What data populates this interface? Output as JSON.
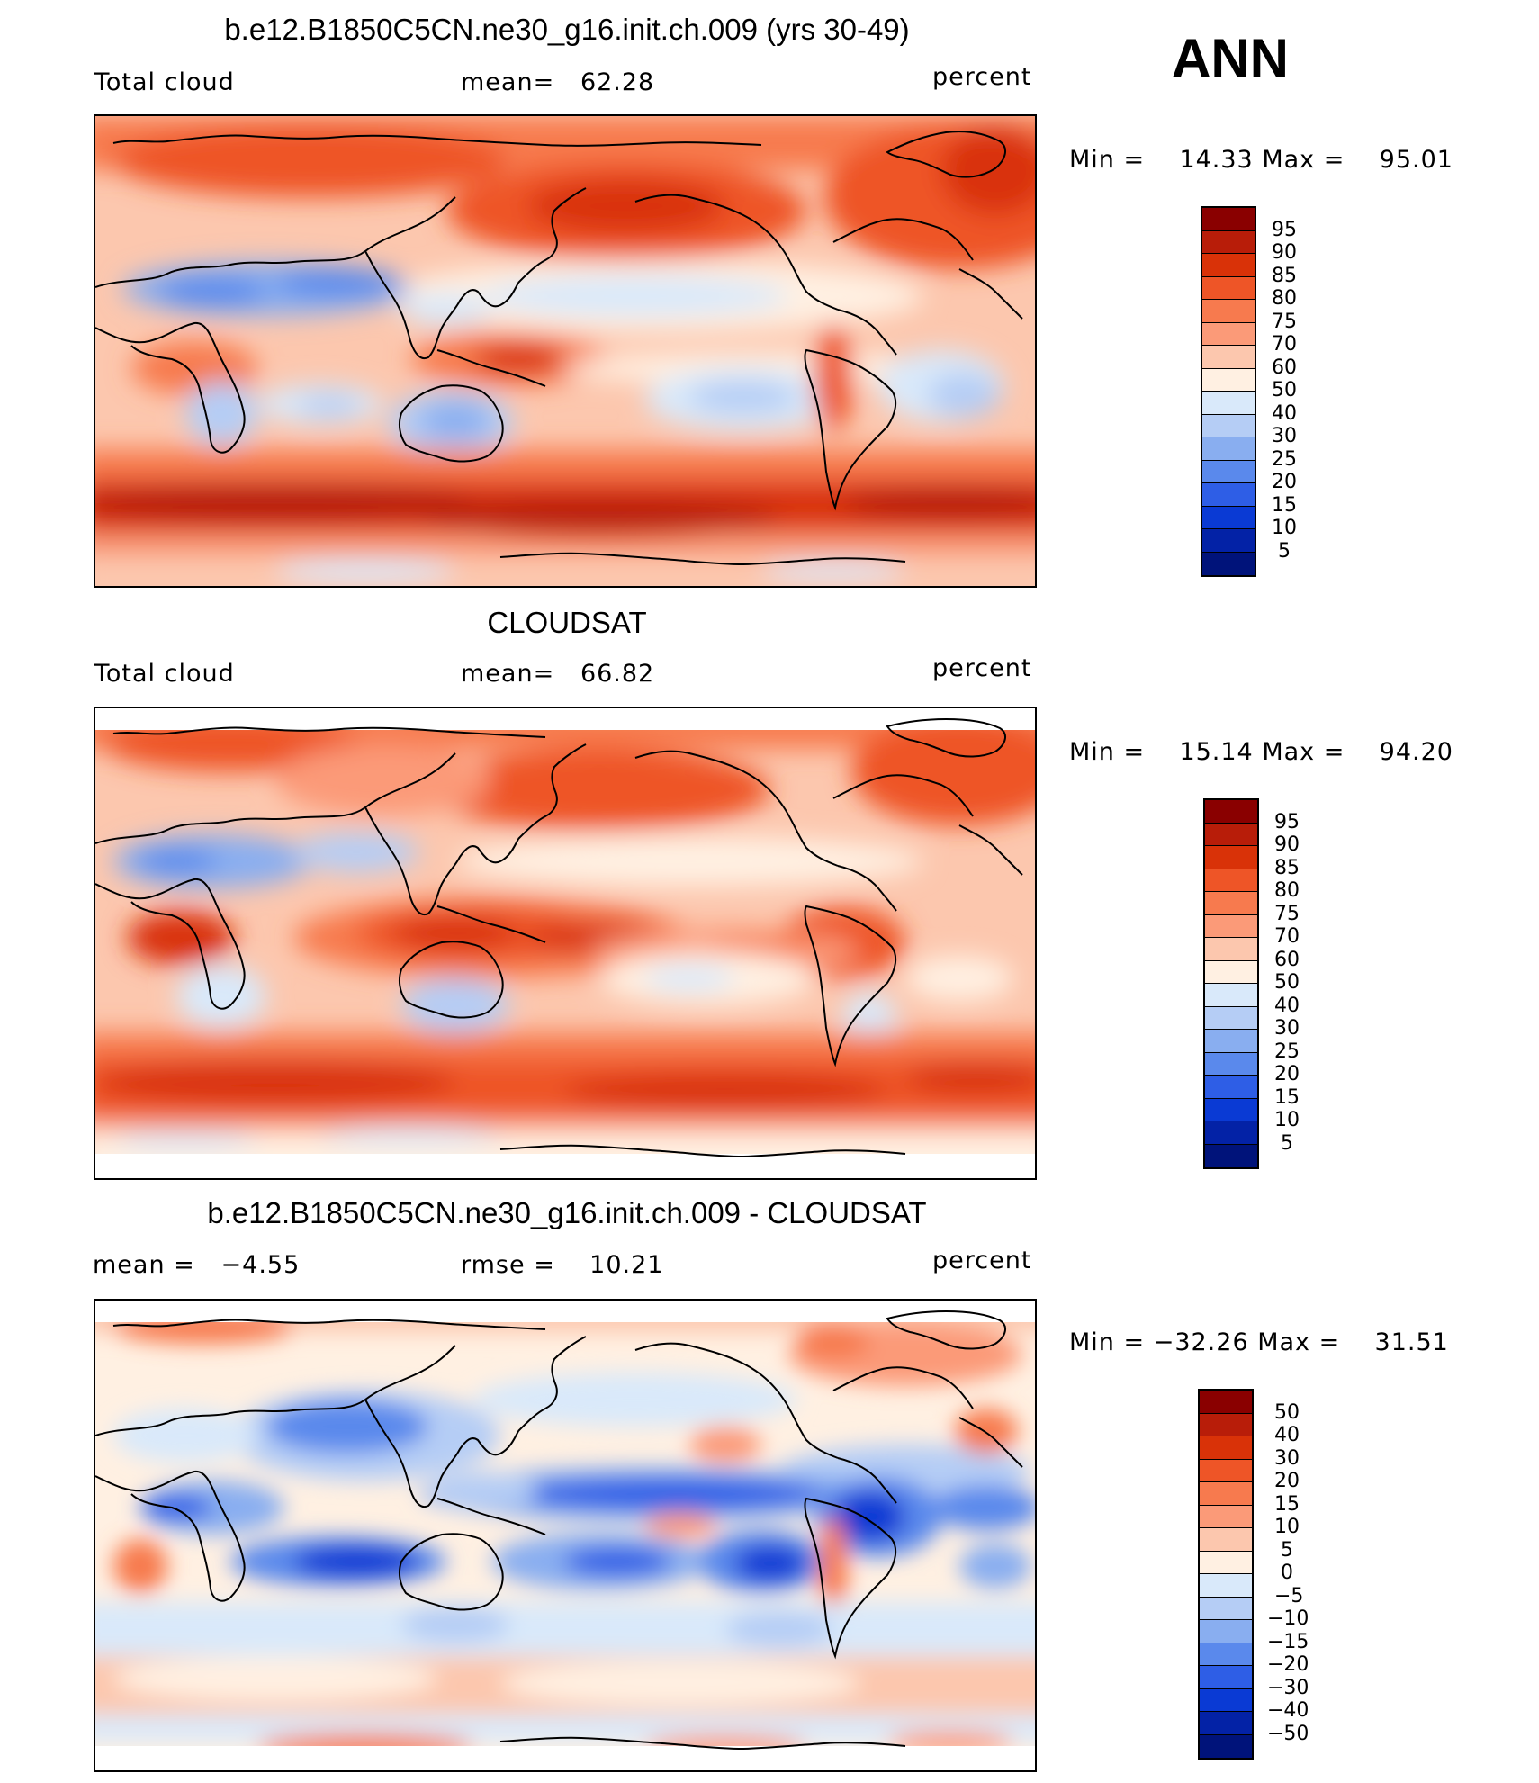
{
  "season": "ANN",
  "units": "percent",
  "panels": [
    {
      "title": "b.e12.B1850C5CN.ne30_g16.init.ch.009 (yrs 30-49)",
      "left_label": "Total cloud",
      "center_label": "mean=   62.28",
      "right_label": "percent",
      "minmax": "Min =    14.33 Max =    95.01",
      "levels": [
        "95",
        "90",
        "85",
        "80",
        "75",
        "70",
        "60",
        "50",
        "40",
        "30",
        "25",
        "20",
        "15",
        "10",
        "5"
      ]
    },
    {
      "title": "CLOUDSAT",
      "left_label": "Total cloud",
      "center_label": "mean=   66.82",
      "right_label": "percent",
      "minmax": "Min =    15.14 Max =    94.20",
      "levels": [
        "95",
        "90",
        "85",
        "80",
        "75",
        "70",
        "60",
        "50",
        "40",
        "30",
        "25",
        "20",
        "15",
        "10",
        "5"
      ]
    },
    {
      "title": "b.e12.B1850C5CN.ne30_g16.init.ch.009 - CLOUDSAT",
      "left_label": "mean =   −4.55",
      "center_label": "rmse =    10.21",
      "right_label": "percent",
      "minmax": "Min = −32.26 Max =    31.51",
      "levels": [
        "50",
        "40",
        "30",
        "20",
        "15",
        "10",
        "5",
        "0",
        "−5",
        "−10",
        "−15",
        "−20",
        "−30",
        "−40",
        "−50"
      ]
    }
  ],
  "colors": {
    "scale": [
      "#8a0000",
      "#b81d09",
      "#d93208",
      "#ee5527",
      "#f77a4e",
      "#fb9a78",
      "#fcc7ae",
      "#fff0e2",
      "#d9e9fa",
      "#b5cdf5",
      "#89aef0",
      "#5a89ec",
      "#2e5ee6",
      "#0a3ad4",
      "#0322a6",
      "#00137a"
    ]
  }
}
